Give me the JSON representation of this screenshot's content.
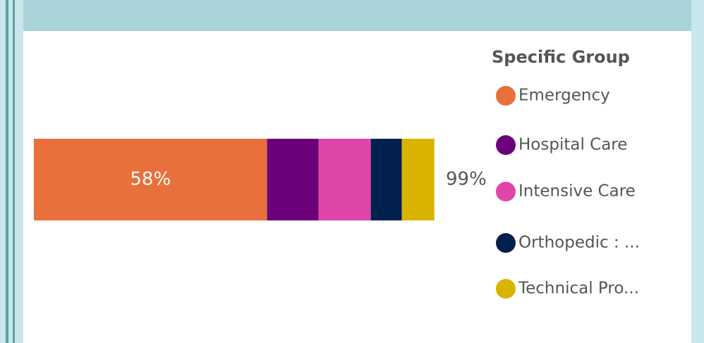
{
  "chart_data": {
    "type": "stacked_bar_h",
    "legend_title": "Specific Group",
    "legend_position": "right",
    "xlim": [
      0,
      100
    ],
    "end_label": "99%",
    "series": [
      {
        "name": "Emergency",
        "color": "#e8703a",
        "values": [
          58
        ],
        "value_labels": [
          "58%"
        ]
      },
      {
        "name": "Hospital Care",
        "color": "#6b007b",
        "values": [
          12.8
        ]
      },
      {
        "name": "Intensive Care",
        "color": "#e046a9",
        "values": [
          13
        ]
      },
      {
        "name": "Orthopedic : ...",
        "color": "#00204e",
        "values": [
          7.7
        ]
      },
      {
        "name": "Technical Pro...",
        "color": "#d9b300",
        "values": [
          8.1
        ]
      }
    ]
  }
}
